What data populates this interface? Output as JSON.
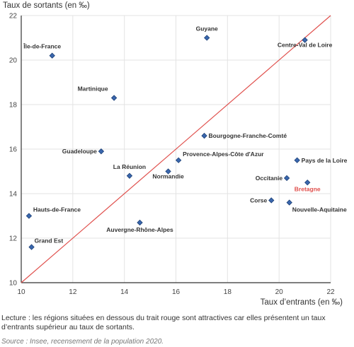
{
  "chart_data": {
    "type": "scatter",
    "ylabel": "Taux de sortants (en ‰)",
    "xlabel": "Taux d’entrants (en ‰)",
    "xlim": [
      10,
      22
    ],
    "ylim": [
      10,
      22
    ],
    "xticks": [
      10,
      12,
      14,
      16,
      18,
      20,
      22
    ],
    "yticks": [
      10,
      12,
      14,
      16,
      18,
      20,
      22
    ],
    "grid": true,
    "reference_line": "y = x",
    "points": [
      {
        "label": "Guyane",
        "x": 17.2,
        "y": 21.0
      },
      {
        "label": "Centre-Val de Loire",
        "x": 21.0,
        "y": 20.9
      },
      {
        "label": "Île-de-France",
        "x": 11.2,
        "y": 20.2
      },
      {
        "label": "Martinique",
        "x": 13.6,
        "y": 18.3
      },
      {
        "label": "Bourgogne-Franche-Comté",
        "x": 17.1,
        "y": 16.6
      },
      {
        "label": "Guadeloupe",
        "x": 13.1,
        "y": 15.9
      },
      {
        "label": "Provence-Alpes-Côte d'Azur",
        "x": 16.1,
        "y": 15.5
      },
      {
        "label": "Pays de la Loire",
        "x": 20.7,
        "y": 15.5
      },
      {
        "label": "La Réunion",
        "x": 14.2,
        "y": 14.8
      },
      {
        "label": "Normandie",
        "x": 15.7,
        "y": 15.0
      },
      {
        "label": "Occitanie",
        "x": 20.3,
        "y": 14.7
      },
      {
        "label": "Bretagne",
        "x": 21.1,
        "y": 14.5,
        "highlight": true
      },
      {
        "label": "Corse",
        "x": 19.7,
        "y": 13.7
      },
      {
        "label": "Nouvelle-Aquitaine",
        "x": 20.4,
        "y": 13.6
      },
      {
        "label": "Hauts-de-France",
        "x": 10.3,
        "y": 13.0
      },
      {
        "label": "Auvergne-Rhône-Alpes",
        "x": 14.6,
        "y": 12.7
      },
      {
        "label": "Grand Est",
        "x": 10.4,
        "y": 11.6
      }
    ]
  },
  "note": "Lecture : les régions situées en dessous du trait rouge sont attractives car elles présentent un taux d’entrants supérieur au taux de sortants.",
  "source": "Source : Insee, recensement de la population 2020.",
  "colors": {
    "marker_fill": "#3a67ae",
    "marker_stroke": "#1b3f75",
    "reference_line": "#e0504d",
    "highlight_label": "#e0504d",
    "grid": "#e3e3e3",
    "axis": "#333333"
  }
}
